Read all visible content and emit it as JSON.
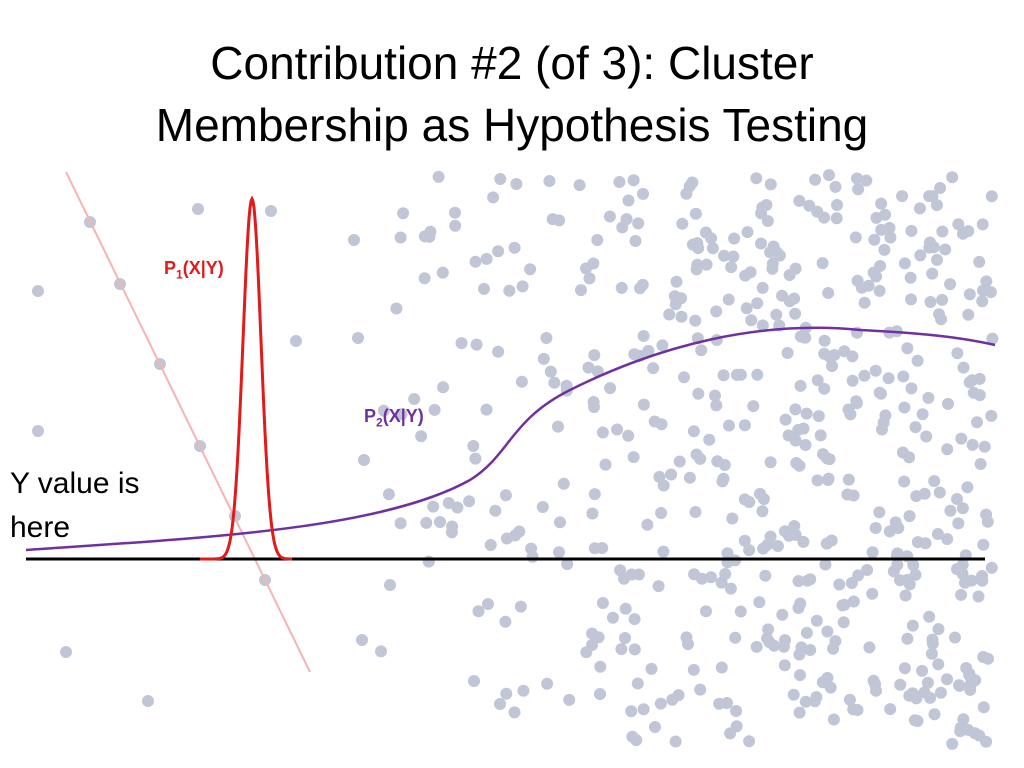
{
  "title": {
    "line1": "Contribution #2 (of 3): Cluster",
    "line2": "Membership as Hypothesis Testing"
  },
  "labels": {
    "p1_prefix": "P",
    "p1_sub": "1",
    "p1_rest": "(X|Y)",
    "p2_prefix": "P",
    "p2_sub": "2",
    "p2_rest": "(X|Y)",
    "y_note_line1": "Y value is",
    "y_note_line2": "here"
  },
  "colors": {
    "points": "#c0c6d6",
    "p1_curve": "#e11a1a",
    "p2_curve": "#7030a0",
    "cluster1_line": "#f4b4b4",
    "axis": "#000000"
  }
}
